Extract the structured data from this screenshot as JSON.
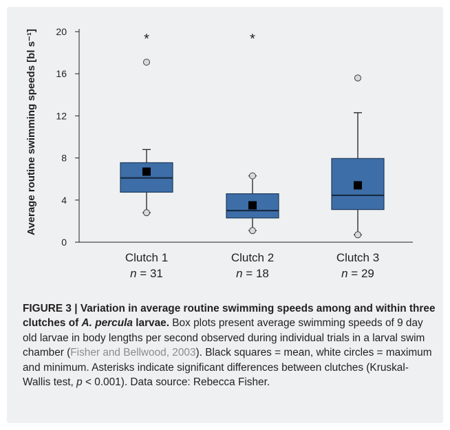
{
  "chart_data": {
    "type": "box",
    "ylabel": "Average routine swimming speeds [bl s⁻¹]",
    "ylim": [
      0,
      20
    ],
    "yticks": [
      "0",
      "4",
      "8",
      "12",
      "16",
      "20"
    ],
    "categories": [
      "Clutch 1",
      "Clutch 2",
      "Clutch 3"
    ],
    "n_labels": [
      {
        "n": "n",
        "rest": " = 31"
      },
      {
        "n": "n",
        "rest": " = 18"
      },
      {
        "n": "n",
        "rest": " = 29"
      }
    ],
    "boxes": [
      {
        "q1": 4.75,
        "median": 6.1,
        "q3": 7.55,
        "whisker_low": 2.8,
        "whisker_high": 8.8,
        "mean": 6.7,
        "min": 2.8,
        "max": 17.1,
        "annotation": "*"
      },
      {
        "q1": 2.3,
        "median": 3.0,
        "q3": 4.6,
        "whisker_low": 1.1,
        "whisker_high": 6.3,
        "mean": 3.5,
        "min": 1.1,
        "max": 6.3,
        "annotation": "*"
      },
      {
        "q1": 3.1,
        "median": 4.45,
        "q3": 7.95,
        "whisker_low": 0.7,
        "whisker_high": 12.3,
        "mean": 5.4,
        "min": 0.7,
        "max": 15.6,
        "annotation": ""
      }
    ],
    "colors": {
      "box_fill": "#3d6ea7",
      "box_stroke": "#1f3b5c",
      "mean_marker": "#000000",
      "minmax_marker": "#d9d9d9"
    }
  },
  "caption": {
    "figure_label": "FIGURE 3 | Variation in average routine swimming speeds among and within three clutches of ",
    "species": "A. percula",
    "title_end": " larvae.",
    "text1": " Box plots present average swimming speeds of 9 day old larvae in body lengths per second observed during individual trials in a larval swim chamber (",
    "citation": "Fisher and Bellwood, 2003",
    "text2": "). Black squares = mean, white circles = maximum and minimum. Asterisks indicate significant differences between clutches (Kruskal-Wallis test, ",
    "p_symbol": "p",
    "text3": " < 0.001). Data source: Rebecca Fisher."
  }
}
